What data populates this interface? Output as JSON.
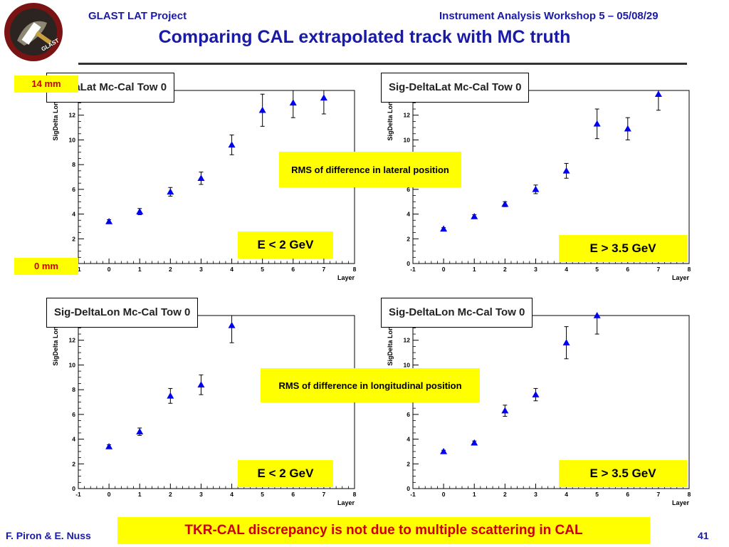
{
  "header": {
    "left": "GLAST LAT Project",
    "right": "Instrument Analysis Workshop 5 – 05/08/29",
    "title": "Comparing CAL extrapolated track with MC truth"
  },
  "colors": {
    "accent": "#1a1aa8",
    "marker": "#0000ee",
    "highlight": "#ffff00",
    "alert": "#cc0000"
  },
  "logo": {
    "icon": "glast-logo-icon",
    "text": "GLAST"
  },
  "chart_data": [
    {
      "type": "scatter",
      "title": "DeltaLat Mc-Cal Tow 0",
      "ylabel": "SigDelta Long",
      "xlabel": "Layer",
      "xlim": [
        -1,
        8
      ],
      "ylim": [
        0,
        14
      ],
      "xticks": [
        "-1",
        "0",
        "1",
        "2",
        "3",
        "4",
        "5",
        "6",
        "7",
        "8"
      ],
      "yticks": [
        "0",
        "2",
        "4",
        "6",
        "8",
        "10",
        "12"
      ],
      "x": [
        0,
        1,
        2,
        3,
        4,
        5,
        6,
        7
      ],
      "y": [
        3.4,
        4.2,
        5.8,
        6.9,
        9.6,
        12.4,
        13.0,
        13.4
      ],
      "err": [
        0.15,
        0.25,
        0.35,
        0.5,
        0.8,
        1.3,
        1.2,
        1.3
      ],
      "marker": "triangle"
    },
    {
      "type": "scatter",
      "title": "Sig-DeltaLat Mc-Cal Tow 0",
      "ylabel": "SigDelta Long",
      "xlabel": "Layer",
      "xlim": [
        -1,
        8
      ],
      "ylim": [
        0,
        14
      ],
      "xticks": [
        "-1",
        "0",
        "1",
        "2",
        "3",
        "4",
        "5",
        "6",
        "7",
        "8"
      ],
      "yticks": [
        "0",
        "2",
        "4",
        "6",
        "8",
        "10",
        "12"
      ],
      "x": [
        0,
        1,
        2,
        3,
        4,
        5,
        6,
        7
      ],
      "y": [
        2.8,
        3.8,
        4.8,
        6.0,
        7.5,
        11.3,
        10.9,
        13.7
      ],
      "err": [
        0.1,
        0.15,
        0.2,
        0.35,
        0.6,
        1.2,
        0.9,
        1.3
      ],
      "marker": "triangle"
    },
    {
      "type": "scatter",
      "title": "Sig-DeltaLon Mc-Cal Tow 0",
      "ylabel": "SigDelta Long",
      "xlabel": "Layer",
      "xlim": [
        -1,
        8
      ],
      "ylim": [
        0,
        14
      ],
      "xticks": [
        "-1",
        "0",
        "1",
        "2",
        "3",
        "4",
        "5",
        "6",
        "7",
        "8"
      ],
      "yticks": [
        "0",
        "2",
        "4",
        "6",
        "8",
        "10",
        "12"
      ],
      "x": [
        0,
        1,
        2,
        3,
        4
      ],
      "y": [
        3.4,
        4.6,
        7.5,
        8.4,
        13.2
      ],
      "err": [
        0.15,
        0.3,
        0.6,
        0.8,
        1.4
      ],
      "marker": "triangle"
    },
    {
      "type": "scatter",
      "title": "Sig-DeltaLon Mc-Cal Tow 0",
      "ylabel": "SigDelta Long",
      "xlabel": "Layer",
      "xlim": [
        -1,
        8
      ],
      "ylim": [
        0,
        14
      ],
      "xticks": [
        "-1",
        "0",
        "1",
        "2",
        "3",
        "4",
        "5",
        "6",
        "7",
        "8"
      ],
      "yticks": [
        "0",
        "2",
        "4",
        "6",
        "8",
        "10",
        "12"
      ],
      "x": [
        0,
        1,
        2,
        3,
        4,
        5
      ],
      "y": [
        3.0,
        3.7,
        6.3,
        7.6,
        11.8,
        14.0
      ],
      "err": [
        0.1,
        0.15,
        0.45,
        0.5,
        1.3,
        1.5
      ],
      "marker": "triangle"
    }
  ],
  "labels": {
    "mm14": "14 mm",
    "mm0": "0 mm",
    "rms_lat": "RMS of difference in lateral position",
    "rms_lon": "RMS of difference in longitudinal position",
    "e_low_1": "E < 2 GeV",
    "e_high_1": "E > 3.5 GeV",
    "e_low_2": "E < 2 GeV",
    "e_high_2": "E > 3.5 GeV"
  },
  "footer": {
    "authors": "F. Piron & E. Nuss",
    "conclusion": "TKR-CAL discrepancy is not due to multiple scattering in CAL",
    "page": "41"
  }
}
